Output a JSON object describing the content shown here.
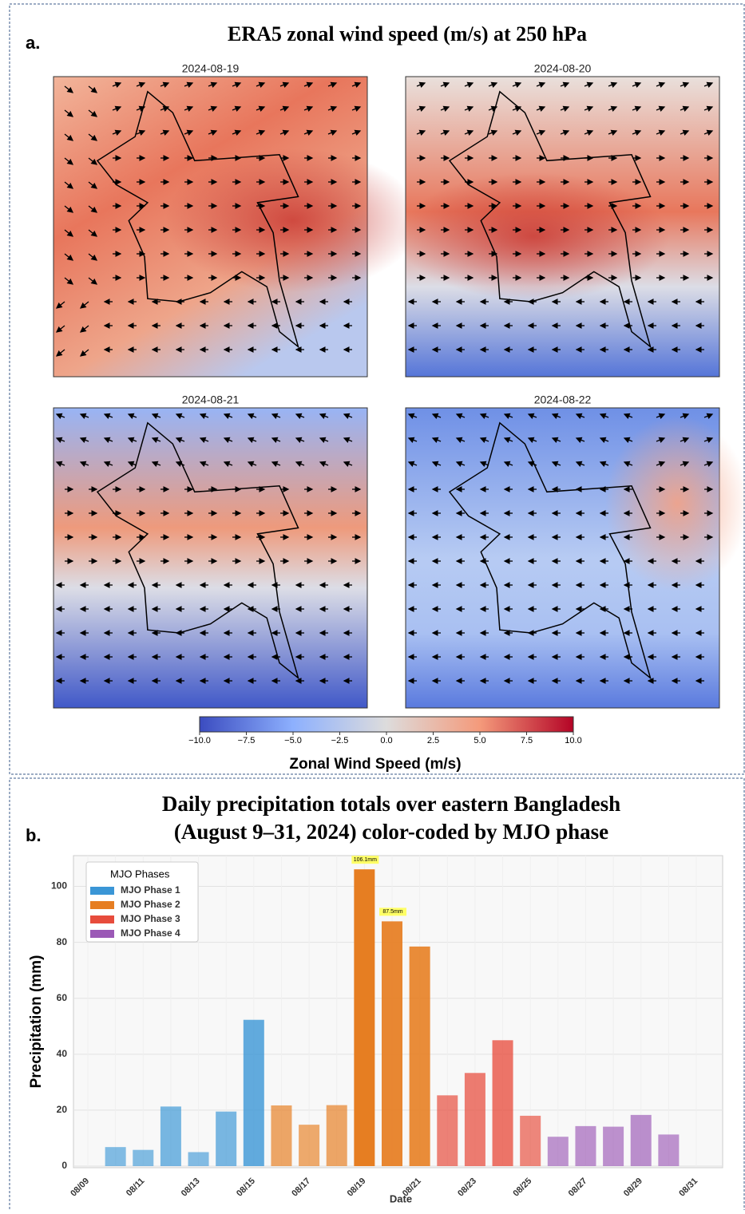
{
  "chart_data": [
    {
      "type": "map",
      "label": "a.",
      "title": "ERA5 zonal wind speed (m/s) at 250 hPa",
      "panels": [
        "2024-08-19",
        "2024-08-20",
        "2024-08-21",
        "2024-08-22"
      ],
      "colorbar": {
        "label": "Zonal Wind Speed  (m/s)",
        "lim": [
          -10,
          10
        ],
        "ticks": [
          {
            "value": -10,
            "label": "−10.0"
          },
          {
            "value": -7.5,
            "label": "−7.5"
          },
          {
            "value": -5,
            "label": "−5.0"
          },
          {
            "value": -2.5,
            "label": "−2.5"
          },
          {
            "value": 0,
            "label": "0.0"
          },
          2.5,
          {
            "value": 5,
            "label": "5.0"
          },
          7.5,
          {
            "value": 10,
            "label": "10.0"
          }
        ]
      }
    },
    {
      "type": "bar",
      "label": "b.",
      "title": [
        "Daily precipitation totals over eastern Bangladesh",
        "(August 9–31, 2024) color-coded by MJO phase"
      ],
      "xlabel": "Date",
      "ylabel": "Precipitation (mm)",
      "categories": [
        "08/09",
        null,
        "08/11",
        null,
        "08/13",
        null,
        "08/15",
        null,
        "08/17",
        null,
        "08/19",
        null,
        "08/21",
        null,
        "08/23",
        null,
        "08/25",
        null,
        "08/27",
        null,
        "08/29",
        null,
        "08/31"
      ],
      "series": [
        {
          "name": "MJO Phase 1",
          "color": "#3a96d6",
          "values": [
            null,
            6.8,
            5.8,
            21.3,
            5.0,
            19.5,
            52.3,
            null,
            null,
            null,
            null,
            null,
            null,
            null,
            null,
            null,
            null,
            null,
            null,
            null,
            null,
            null,
            null
          ]
        },
        {
          "name": "MJO Phase 2",
          "color": "#e67e22",
          "values": [
            null,
            null,
            null,
            null,
            null,
            null,
            null,
            21.7,
            14.8,
            21.8,
            106.1,
            87.5,
            78.5,
            null,
            null,
            null,
            null,
            null,
            null,
            null,
            null,
            null,
            null
          ],
          "value_labels": [
            null,
            null,
            null,
            null,
            null,
            null,
            null,
            null,
            null,
            null,
            "106.1mm",
            "87.5mm",
            null,
            null,
            null,
            null,
            null,
            null,
            null,
            null,
            null,
            null,
            null
          ]
        },
        {
          "name": "MJO Phase 3",
          "color": "#e74c3c",
          "values": [
            null,
            null,
            null,
            null,
            null,
            null,
            null,
            null,
            null,
            null,
            null,
            null,
            null,
            25.3,
            33.3,
            45.0,
            18.0,
            null,
            null,
            null,
            null,
            null,
            null
          ]
        },
        {
          "name": "MJO Phase 4",
          "color": "#9b59b6",
          "values": [
            null,
            null,
            null,
            null,
            null,
            null,
            null,
            null,
            null,
            null,
            null,
            null,
            null,
            null,
            null,
            null,
            null,
            10.5,
            14.3,
            14.1,
            18.3,
            11.3,
            null
          ]
        }
      ],
      "legend_title": "MJO Phases",
      "legend": "upper left",
      "ylim": [
        0,
        111
      ],
      "yticks": [
        0,
        20,
        40,
        60,
        80,
        100
      ],
      "grid": true
    }
  ]
}
